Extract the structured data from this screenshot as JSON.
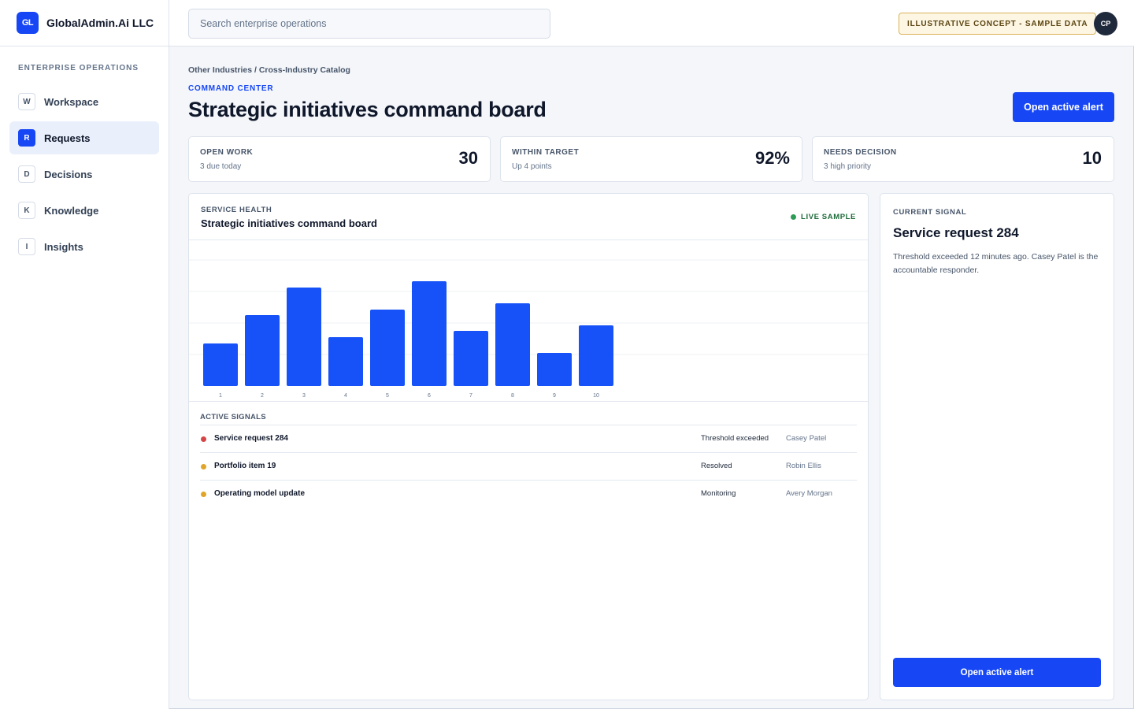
{
  "brand": {
    "logo_text": "GL",
    "name": "GlobalAdmin.Ai LLC"
  },
  "sidebar": {
    "heading": "ENTERPRISE OPERATIONS",
    "items": [
      {
        "letter": "W",
        "label": "Workspace",
        "active": false
      },
      {
        "letter": "R",
        "label": "Requests",
        "active": true
      },
      {
        "letter": "D",
        "label": "Decisions",
        "active": false
      },
      {
        "letter": "K",
        "label": "Knowledge",
        "active": false
      },
      {
        "letter": "I",
        "label": "Insights",
        "active": false
      }
    ]
  },
  "topbar": {
    "search_placeholder": "Search enterprise operations",
    "badge": "ILLUSTRATIVE CONCEPT - SAMPLE DATA",
    "avatar": "CP"
  },
  "header": {
    "breadcrumb": "Other Industries / Cross-Industry Catalog",
    "eyebrow": "COMMAND CENTER",
    "title": "Strategic initiatives command board",
    "primary_button": "Open active alert"
  },
  "kpis": [
    {
      "label": "OPEN WORK",
      "sub": "3 due today",
      "value": "30"
    },
    {
      "label": "WITHIN TARGET",
      "sub": "Up 4 points",
      "value": "92%"
    },
    {
      "label": "NEEDS DECISION",
      "sub": "3 high priority",
      "value": "10"
    }
  ],
  "service_health": {
    "eyebrow": "SERVICE HEALTH",
    "title": "Strategic initiatives command board",
    "live_label": "LIVE SAMPLE"
  },
  "chart_data": {
    "type": "bar",
    "categories": [
      "1",
      "2",
      "3",
      "4",
      "5",
      "6",
      "7",
      "8",
      "9",
      "10"
    ],
    "values": [
      54,
      90,
      125,
      62,
      97,
      133,
      70,
      105,
      42,
      77
    ],
    "ylim": [
      0,
      180
    ],
    "grid": true,
    "color": "#1652f7"
  },
  "signals": {
    "heading": "ACTIVE SIGNALS",
    "rows": [
      {
        "name": "Service request 284",
        "status": "Threshold exceeded",
        "owner": "Casey Patel",
        "color": "#d64545"
      },
      {
        "name": "Portfolio item 19",
        "status": "Resolved",
        "owner": "Robin Ellis",
        "color": "#e0a526"
      },
      {
        "name": "Operating model update",
        "status": "Monitoring",
        "owner": "Avery Morgan",
        "color": "#e0a526"
      }
    ]
  },
  "current_signal": {
    "eyebrow": "CURRENT SIGNAL",
    "title": "Service request 284",
    "description": "Threshold exceeded 12 minutes ago. Casey Patel is the accountable responder.",
    "button": "Open active alert"
  },
  "colors": {
    "accent": "#1747f5",
    "live": "#2e9b57",
    "badge_border": "#d9b25a"
  }
}
